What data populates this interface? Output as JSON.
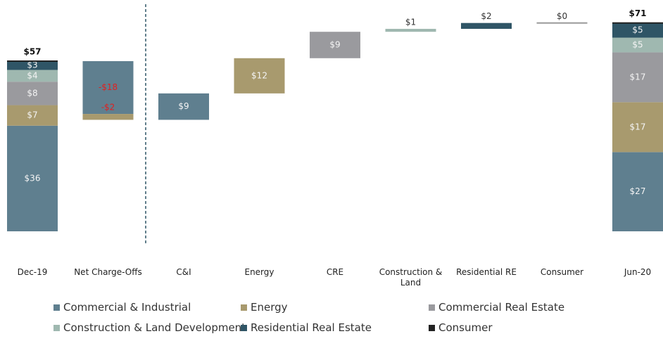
{
  "chart_data": {
    "type": "waterfall",
    "categories": [
      "Dec-19",
      "Net Charge-Offs",
      "C&I",
      "Energy",
      "CRE",
      "Construction & Land",
      "Residential RE",
      "Consumer",
      "Jun-20"
    ],
    "series": [
      {
        "name": "Commercial & Industrial",
        "color": "#5f7f8f",
        "values": [
          36,
          -18,
          9,
          null,
          null,
          null,
          null,
          null,
          27
        ],
        "value_labels": [
          "$36",
          "-$18",
          "$9",
          null,
          null,
          null,
          null,
          null,
          "$27"
        ]
      },
      {
        "name": "Energy",
        "color": "#a89a6e",
        "values": [
          7,
          -2,
          null,
          12,
          null,
          null,
          null,
          null,
          17
        ],
        "value_labels": [
          "$7",
          "-$2",
          null,
          "$12",
          null,
          null,
          null,
          null,
          "$17"
        ]
      },
      {
        "name": "Commercial Real Estate",
        "color": "#9a9a9e",
        "values": [
          8,
          null,
          null,
          null,
          9,
          null,
          null,
          null,
          17
        ],
        "value_labels": [
          "$8",
          null,
          null,
          null,
          "$9",
          null,
          null,
          null,
          "$17"
        ]
      },
      {
        "name": "Construction & Land Development",
        "color": "#9fb8b0",
        "values": [
          4,
          null,
          null,
          null,
          null,
          1,
          null,
          null,
          5
        ],
        "value_labels": [
          "$4",
          null,
          null,
          null,
          null,
          "$1",
          null,
          null,
          "$5"
        ]
      },
      {
        "name": "Residential Real Estate",
        "color": "#2f5566",
        "values": [
          3,
          null,
          null,
          null,
          null,
          null,
          2,
          null,
          5
        ],
        "value_labels": [
          "$3",
          null,
          null,
          null,
          null,
          null,
          "$2",
          null,
          "$5"
        ]
      },
      {
        "name": "Consumer",
        "color": "#222222",
        "values": [
          0,
          null,
          null,
          null,
          null,
          null,
          null,
          0,
          0
        ],
        "value_labels": [
          null,
          null,
          null,
          null,
          null,
          null,
          null,
          "$0",
          null
        ]
      }
    ],
    "totals": [
      57,
      null,
      null,
      null,
      null,
      null,
      null,
      null,
      71
    ],
    "total_labels": [
      "$57",
      null,
      null,
      null,
      null,
      null,
      null,
      null,
      "$71"
    ],
    "stacked_columns": [
      0,
      8
    ],
    "negative_label_color": "#e02020",
    "ylim": [
      0,
      75
    ]
  }
}
